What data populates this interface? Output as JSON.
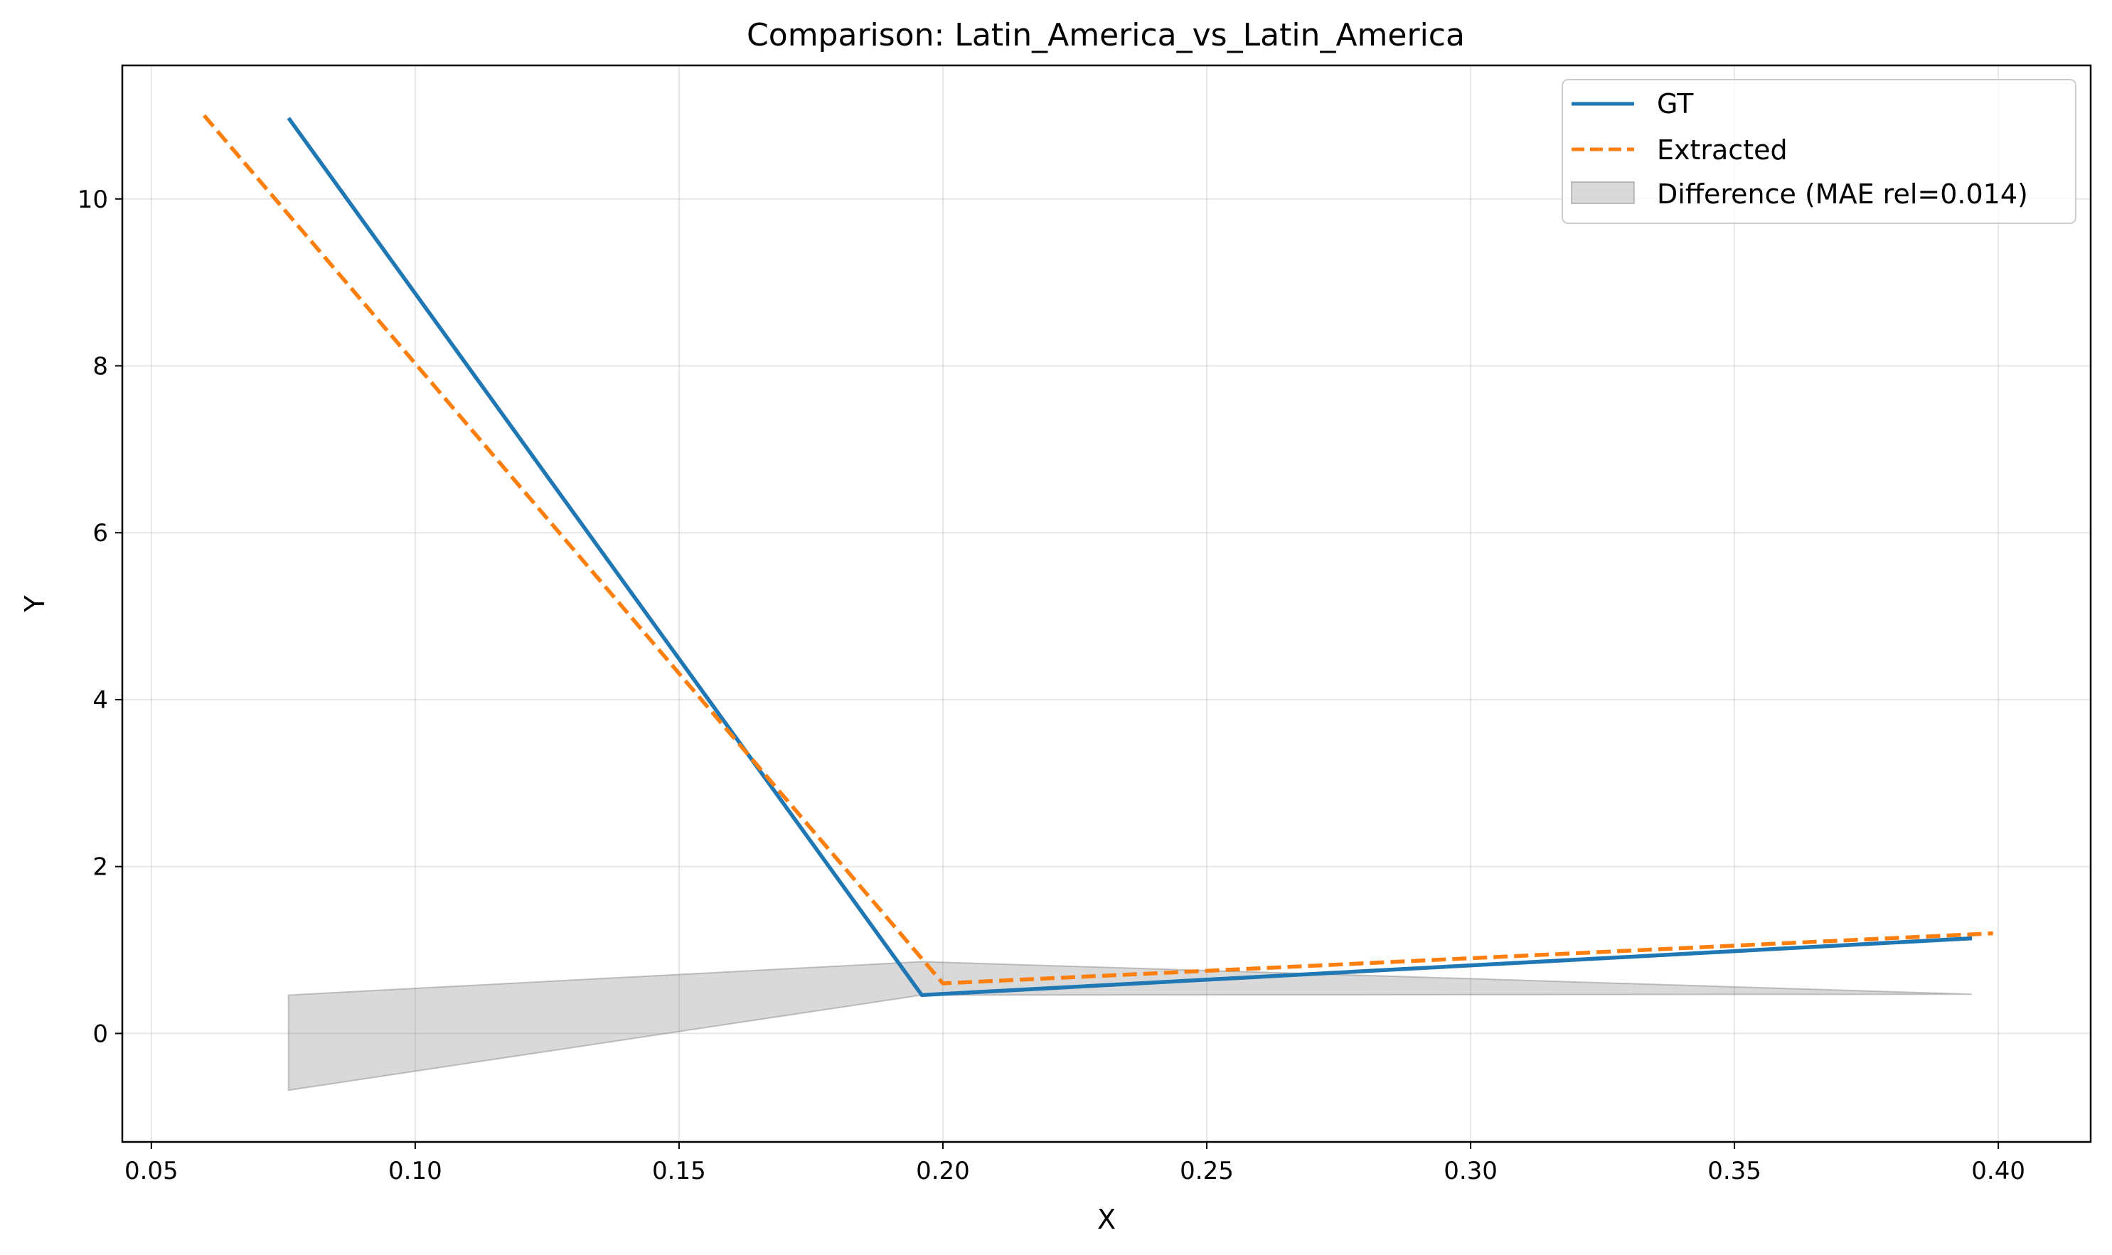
{
  "chart_data": {
    "type": "line",
    "title": "Comparison: Latin_America_vs_Latin_America",
    "xlabel": "X",
    "ylabel": "Y",
    "xlim": [
      0.0445,
      0.4175
    ],
    "ylim": [
      -1.3,
      11.6
    ],
    "xticks": [
      0.05,
      0.1,
      0.15,
      0.2,
      0.25,
      0.3,
      0.35,
      0.4
    ],
    "xtick_labels": [
      "0.05",
      "0.10",
      "0.15",
      "0.20",
      "0.25",
      "0.30",
      "0.35",
      "0.40"
    ],
    "yticks": [
      0,
      2,
      4,
      6,
      8,
      10
    ],
    "ytick_labels": [
      "0",
      "2",
      "4",
      "6",
      "8",
      "10"
    ],
    "grid": true,
    "legend_position": "top-right",
    "series": [
      {
        "name": "GT",
        "color": "#1f77b4",
        "style": "solid",
        "x": [
          0.076,
          0.196,
          0.395
        ],
        "y": [
          10.97,
          0.46,
          1.14
        ]
      },
      {
        "name": "Extracted",
        "color": "#ff7f0e",
        "style": "dashed",
        "x": [
          0.06,
          0.2,
          0.399
        ],
        "y": [
          11.0,
          0.6,
          1.2
        ]
      }
    ],
    "difference": {
      "name": "Difference (MAE rel=0.014)",
      "color": "#808080",
      "x": [
        0.076,
        0.196,
        0.395
      ],
      "lower": [
        -0.68,
        0.46,
        0.47
      ],
      "upper": [
        0.46,
        0.86,
        0.47
      ]
    }
  }
}
